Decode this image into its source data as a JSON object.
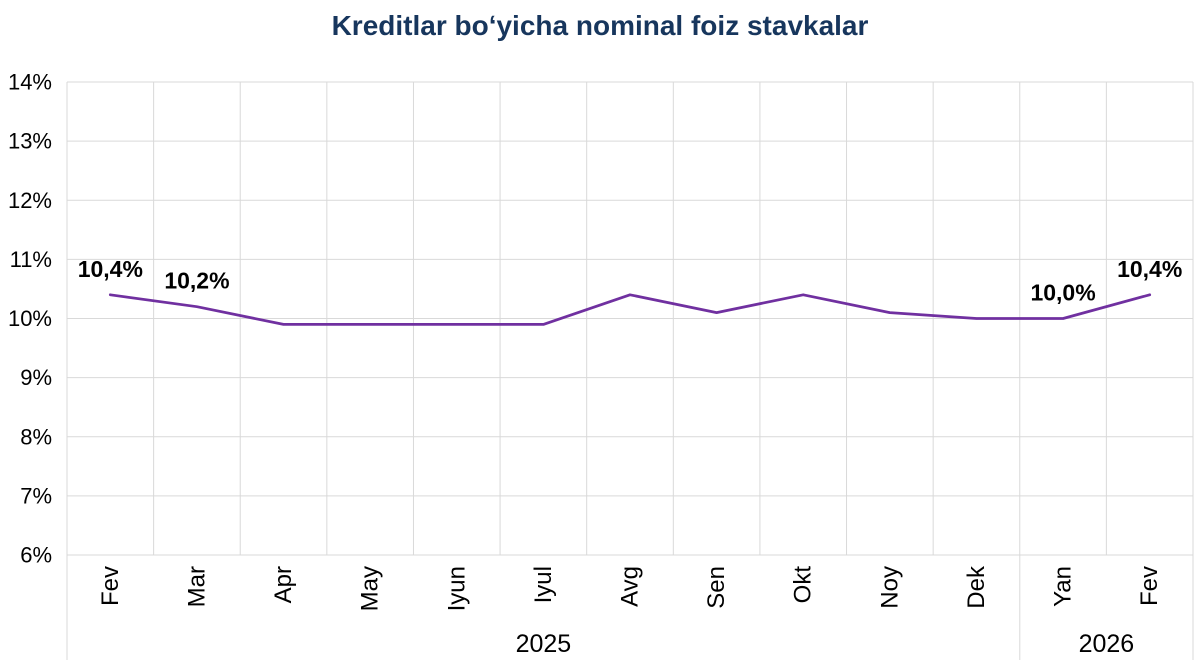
{
  "title": "Kreditlar boʻyicha nominal foiz stavkalar",
  "colors": {
    "title": "#17365D",
    "series_line": "#7030A0",
    "gridline": "#D9D9D9",
    "axis_text": "#000000",
    "data_label": "#000000",
    "background": "#FFFFFF"
  },
  "chart_data": {
    "type": "line",
    "title": "Kreditlar boʻyicha nominal foiz stavkalar",
    "categories": [
      "Fev",
      "Mar",
      "Apr",
      "May",
      "Iyun",
      "Iyul",
      "Avg",
      "Sen",
      "Okt",
      "Noy",
      "Dek",
      "Yan",
      "Fev"
    ],
    "year_groups": [
      {
        "label": "2025",
        "from": 0,
        "to": 10
      },
      {
        "label": "2026",
        "from": 11,
        "to": 12
      }
    ],
    "series": [
      {
        "name": "Kreditlar boʻyicha nominal foiz stavkalar",
        "color": "#7030A0",
        "values": [
          10.4,
          10.2,
          9.9,
          9.9,
          9.9,
          9.9,
          10.4,
          10.1,
          10.4,
          10.1,
          10.0,
          10.0,
          10.4
        ]
      }
    ],
    "point_labels": [
      {
        "index": 0,
        "text": "10,4%"
      },
      {
        "index": 1,
        "text": "10,2%"
      },
      {
        "index": 11,
        "text": "10,0%"
      },
      {
        "index": 12,
        "text": "10,4%"
      }
    ],
    "y_axis": {
      "min": 6,
      "max": 14,
      "step": 1,
      "tick_labels": [
        "14%",
        "13%",
        "12%",
        "11%",
        "10%",
        "9%",
        "8%",
        "7%",
        "6%"
      ],
      "unit": "%"
    },
    "x_axis_label_rotation": -90,
    "grid": true,
    "legend": "none",
    "markers": "none"
  }
}
